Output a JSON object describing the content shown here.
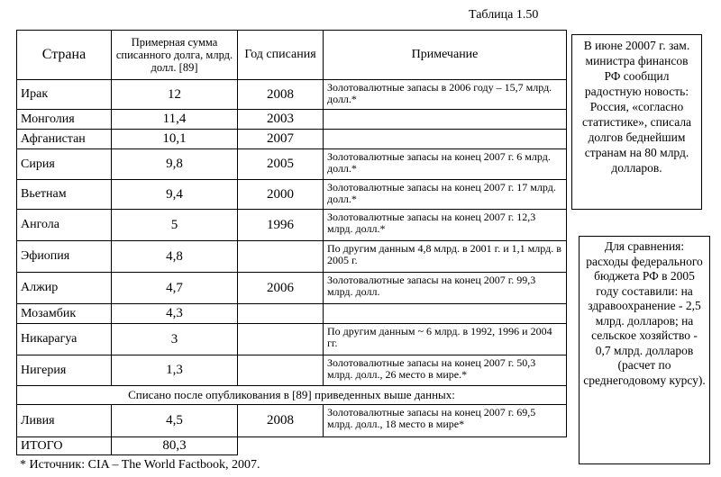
{
  "caption": "Таблица 1.50",
  "table": {
    "header": [
      "Страна",
      "Примерная сумма списанного долга, млрд. долл. [89]",
      "Год списания",
      "Примечание"
    ],
    "rows": [
      [
        "Ирак",
        "12",
        "2008",
        "Золотовалютные запасы в 2006 году – 15,7 млрд. долл.*"
      ],
      [
        "Монголия",
        "11,4",
        "2003",
        null
      ],
      [
        "Афганистан",
        "10,1",
        "2007",
        null
      ],
      [
        "Сирия",
        "9,8",
        "2005",
        "Золотовалютные запасы на конец 2007 г. 6 млрд. долл.*"
      ],
      [
        "Вьетнам",
        "9,4",
        "2000",
        "Золотовалютные запасы на конец 2007 г. 17 млрд. долл.*"
      ],
      [
        "Ангола",
        "5",
        "1996",
        "Золотовалютные запасы на конец 2007 г. 12,3 млрд. долл.*"
      ],
      [
        "Эфиопия",
        "4,8",
        null,
        "По другим данным 4,8 млрд. в 2001 г. и 1,1 млрд. в 2005 г."
      ],
      [
        "Алжир",
        "4,7",
        "2006",
        "Золотовалютные запасы на конец 2007 г. 99,3 млрд. долл."
      ],
      [
        "Мозамбик",
        "4,3",
        null,
        null
      ],
      [
        "Никарагуа",
        "3",
        null,
        "По другим данным ~ 6 млрд. в 1992, 1996 и 2004 гг."
      ],
      [
        "Нигерия",
        "1,3",
        null,
        "Золотовалютные запасы на конец 2007 г. 50,3 млрд. долл., 26 место в мире.*"
      ]
    ],
    "span_row": "Списано после опубликования в [89] приведенных выше данных:",
    "rows_after": [
      [
        "Ливия",
        "4,5",
        "2008",
        "Золотовалютные запасы на конец 2007 г. 69,5 млрд. долл., 18 место в мире*"
      ]
    ],
    "total": [
      "ИТОГО",
      "80,3"
    ]
  },
  "footnote": "* Источник: CIA – The World Factbook, 2007.",
  "sidebox1": "В июне 20007 г. зам. министра финансов РФ сообщил радостную новость: Россия, «согласно статистике», списала долгов беднейшим странам на 80 млрд. долларов.",
  "sidebox2": "Для сравнения: расходы федерального бюджета РФ в 2005 году составили: на здравоохранение - 2,5 млрд. долларов; на сельское хозяйство - 0,7 млрд. долларов (расчет по среднегодовому курсу)."
}
